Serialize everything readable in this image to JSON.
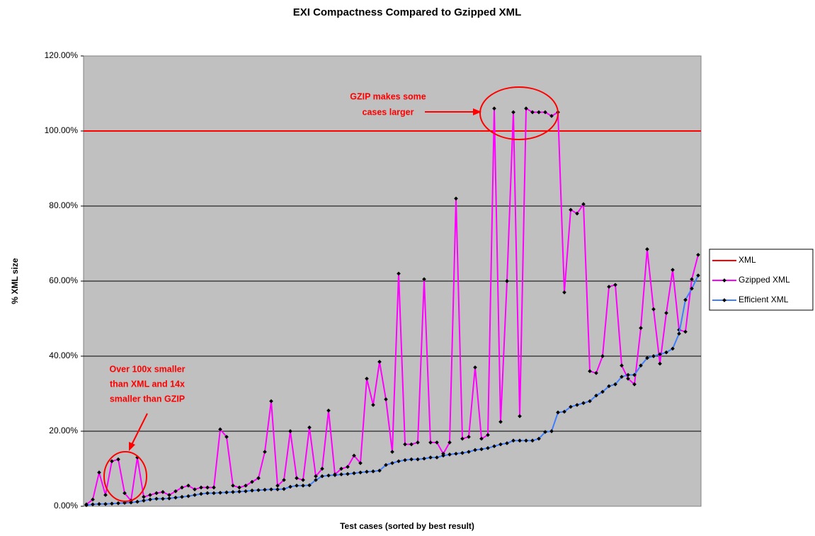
{
  "chart_data": {
    "type": "line",
    "title": "EXI Compactness Compared to Gzipped XML",
    "x_label": "Test cases (sorted by best result)",
    "y_label": "% XML size",
    "ylim": [
      0,
      120
    ],
    "yticks": [
      {
        "value": 0,
        "label": "0.00%"
      },
      {
        "value": 20,
        "label": "20.00%"
      },
      {
        "value": 40,
        "label": "40.00%"
      },
      {
        "value": 60,
        "label": "60.00%"
      },
      {
        "value": 80,
        "label": "80.00%"
      },
      {
        "value": 100,
        "label": "100.00%"
      },
      {
        "value": 120,
        "label": "120.00%"
      }
    ],
    "grid": true,
    "legend": "right",
    "annotations": [
      "GZIP makes some",
      "cases larger",
      "Over 100x smaller",
      "than XML and 14x",
      "smaller than GZIP"
    ],
    "series": [
      {
        "name": "XML",
        "color": "#ff0000",
        "values": [
          100,
          100,
          100,
          100,
          100,
          100,
          100,
          100,
          100,
          100,
          100,
          100,
          100,
          100,
          100,
          100,
          100,
          100,
          100,
          100,
          100,
          100,
          100,
          100,
          100,
          100,
          100,
          100,
          100,
          100,
          100,
          100,
          100,
          100,
          100,
          100,
          100,
          100,
          100,
          100,
          100,
          100,
          100,
          100,
          100,
          100,
          100,
          100,
          100,
          100,
          100,
          100,
          100,
          100,
          100,
          100,
          100,
          100,
          100,
          100,
          100,
          100,
          100,
          100,
          100,
          100,
          100,
          100,
          100,
          100,
          100,
          100,
          100,
          100,
          100,
          100,
          100,
          100,
          100,
          100,
          100,
          100,
          100,
          100,
          100,
          100,
          100,
          100,
          100,
          100,
          100,
          100,
          100,
          100,
          100,
          100,
          100
        ]
      },
      {
        "name": "Gzipped XML",
        "color": "#ff00ff",
        "values": [
          0.5,
          1.8,
          9,
          3,
          12,
          12.5,
          3.5,
          1.5,
          13,
          2.5,
          3,
          3.5,
          3.8,
          3,
          4,
          5,
          5.5,
          4.5,
          5,
          5,
          5,
          20.5,
          18.5,
          5.5,
          5,
          5.5,
          6.5,
          7.5,
          14.5,
          28,
          5.5,
          7,
          20,
          7.5,
          7,
          21,
          8,
          10,
          25.5,
          8.5,
          10,
          10.5,
          13.5,
          11.5,
          34,
          27,
          38.5,
          28.5,
          14.5,
          62,
          16.5,
          16.5,
          17,
          60.5,
          17,
          17,
          14,
          17,
          82,
          18,
          18.5,
          37,
          18,
          19,
          106,
          22.5,
          60,
          105,
          24,
          106,
          105,
          105,
          105,
          104,
          105,
          57,
          79,
          78,
          80.5,
          36,
          35.5,
          40,
          58.5,
          59,
          37.5,
          34,
          32.5,
          47.5,
          68.5,
          52.5,
          38,
          51.5,
          63,
          47,
          46.5,
          60.5,
          67
        ]
      },
      {
        "name": "Efficient XML",
        "color": "#3f7fff",
        "values": [
          0.3,
          0.5,
          0.6,
          0.6,
          0.7,
          0.8,
          0.9,
          1,
          1.2,
          1.5,
          1.8,
          2,
          2,
          2.1,
          2.3,
          2.5,
          2.7,
          3,
          3.3,
          3.5,
          3.5,
          3.6,
          3.7,
          3.8,
          3.9,
          4,
          4.2,
          4.3,
          4.4,
          4.5,
          4.5,
          4.6,
          5.2,
          5.5,
          5.5,
          5.6,
          7,
          8,
          8.2,
          8.3,
          8.5,
          8.6,
          8.8,
          9,
          9.2,
          9.3,
          9.5,
          11,
          11.5,
          12,
          12.3,
          12.5,
          12.5,
          12.7,
          13,
          13,
          13.5,
          13.8,
          14,
          14.2,
          14.5,
          15,
          15.2,
          15.5,
          16,
          16.5,
          16.8,
          17.5,
          17.5,
          17.5,
          17.5,
          18,
          19.8,
          20,
          25,
          25.2,
          26.5,
          27,
          27.5,
          28,
          29.5,
          30.5,
          32,
          32.5,
          34.5,
          35,
          35,
          37.5,
          39.5,
          40,
          40.5,
          41,
          42,
          46,
          55,
          58,
          61.5
        ]
      }
    ]
  }
}
